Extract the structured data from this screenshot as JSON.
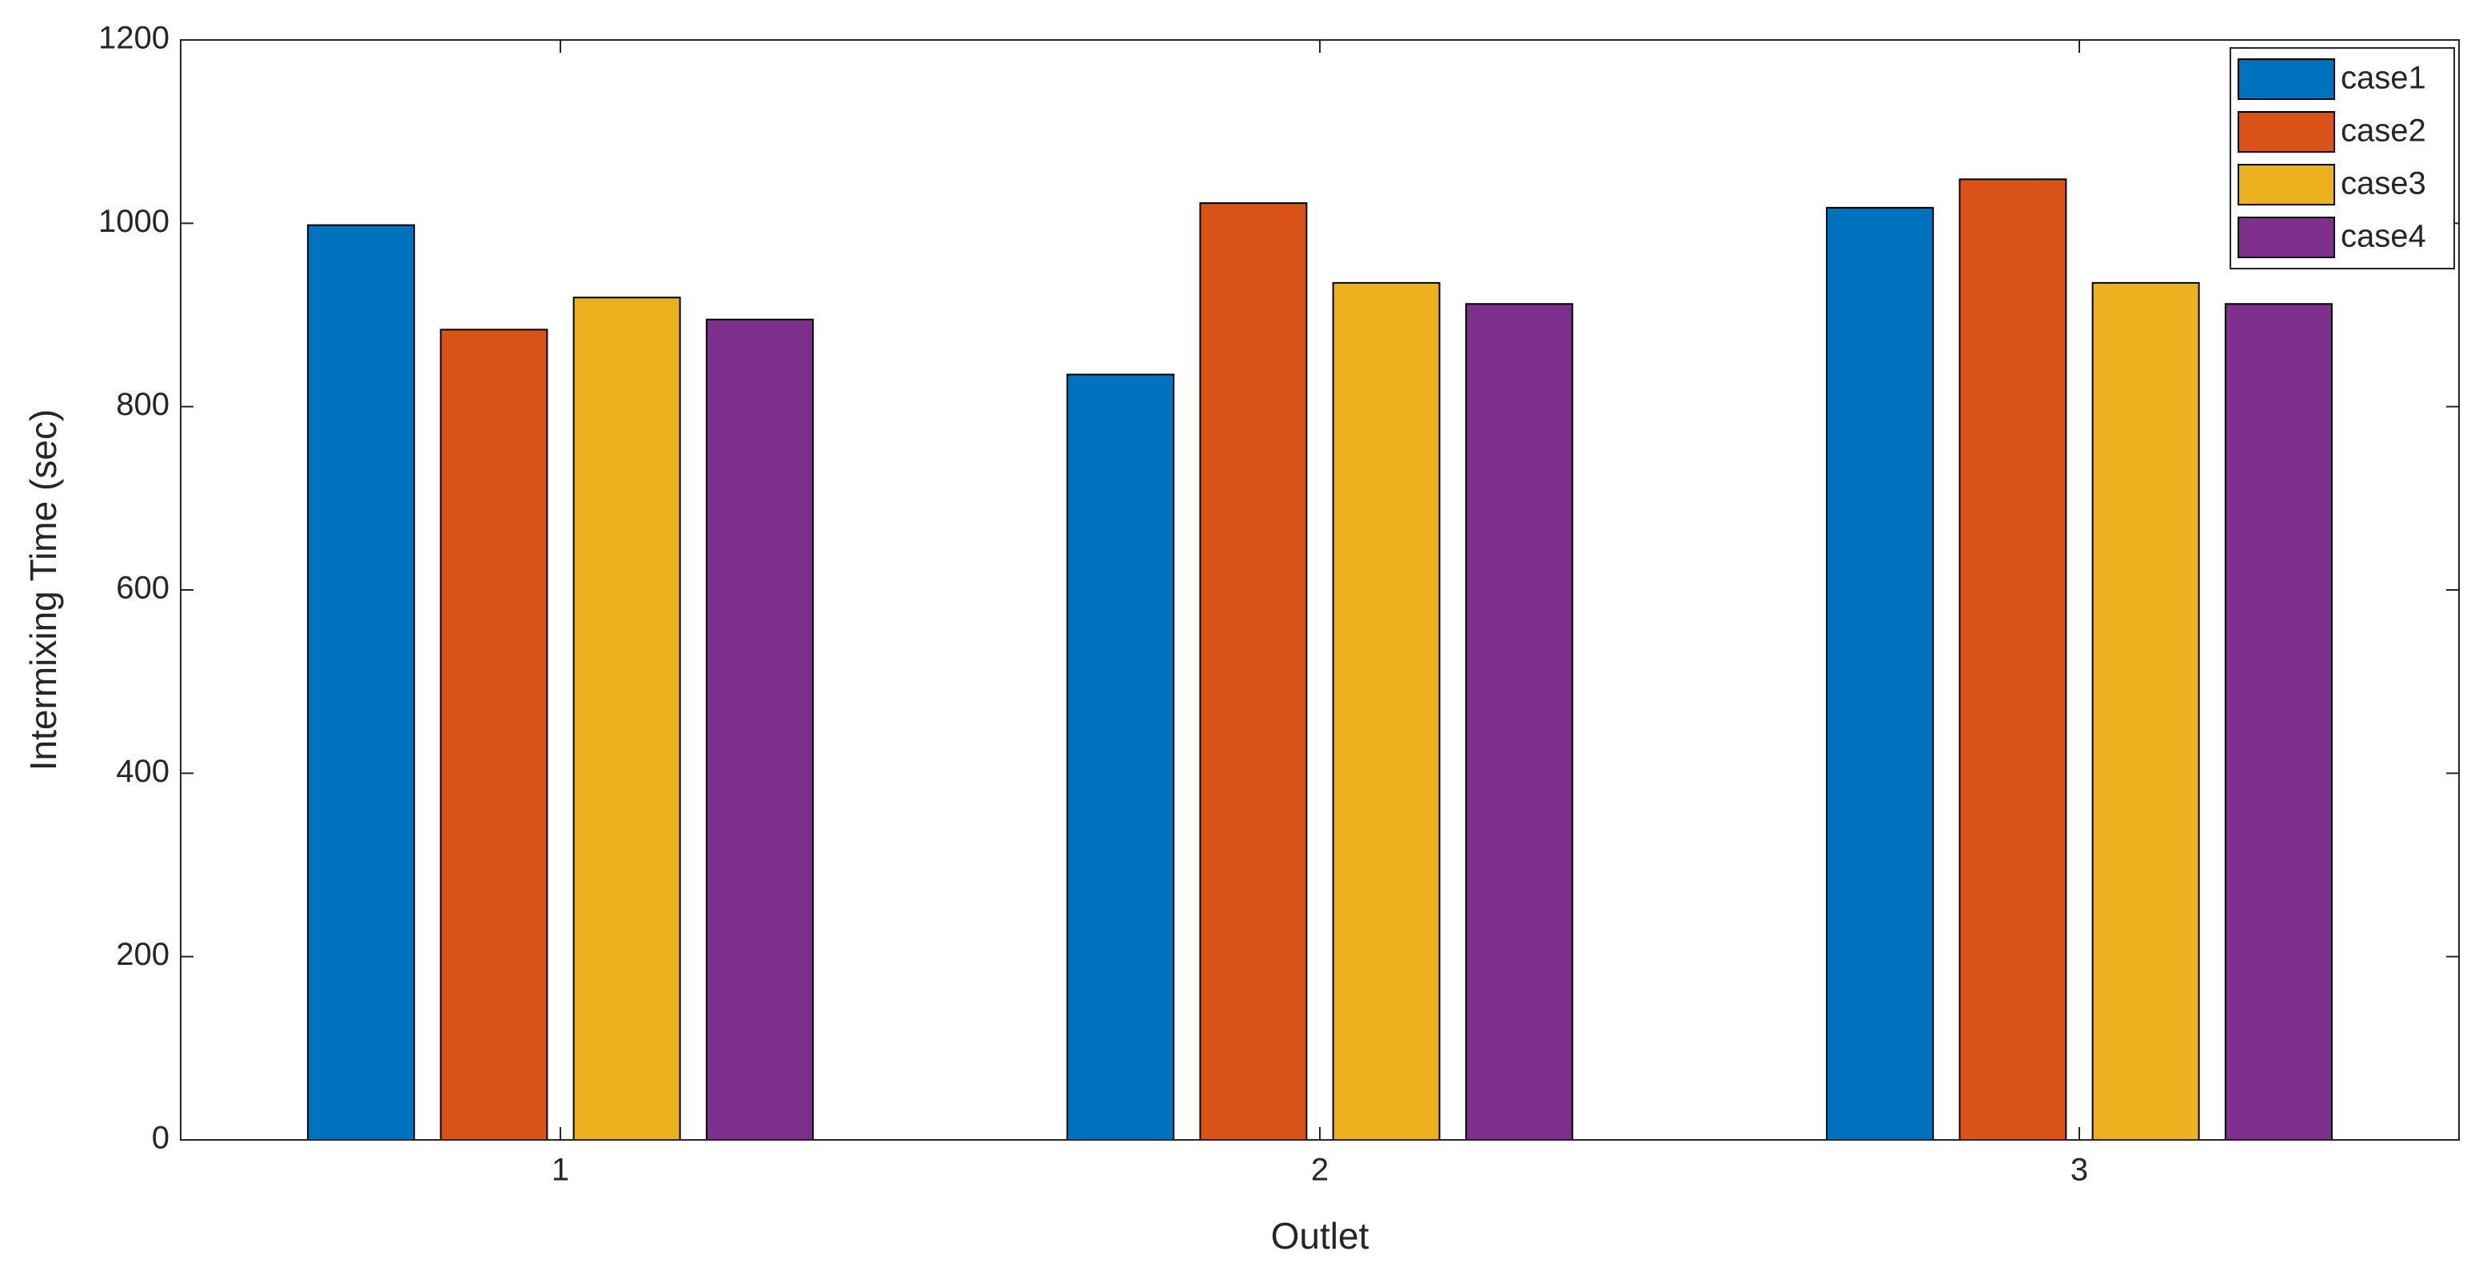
{
  "chart_data": {
    "type": "bar",
    "xlabel": "Outlet",
    "ylabel": "Intermixing Time (sec)",
    "categories": [
      "1",
      "2",
      "3"
    ],
    "series": [
      {
        "name": "case1",
        "color": "#0072bd",
        "values": [
          998,
          835,
          1017
        ]
      },
      {
        "name": "case2",
        "color": "#d95319",
        "values": [
          884,
          1022,
          1048
        ]
      },
      {
        "name": "case3",
        "color": "#edb120",
        "values": [
          919,
          935,
          935
        ]
      },
      {
        "name": "case4",
        "color": "#7e2f8e",
        "values": [
          895,
          912,
          912
        ]
      }
    ],
    "ylim": [
      0,
      1200
    ],
    "yticks": [
      0,
      200,
      400,
      600,
      800,
      1000,
      1200
    ],
    "grid": false,
    "legend": "top-right"
  }
}
